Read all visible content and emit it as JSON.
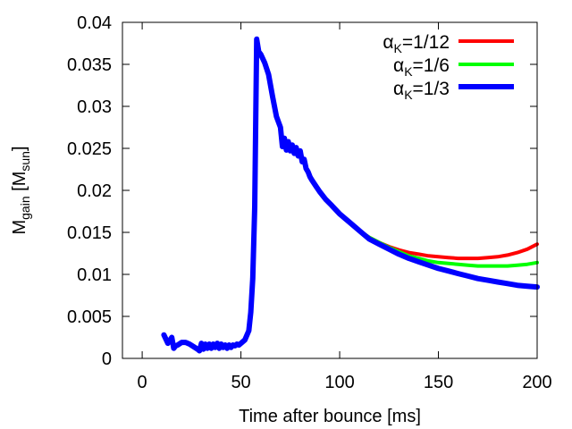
{
  "chart_data": {
    "type": "line",
    "title": "",
    "xlabel": "Time after bounce [ms]",
    "ylabel": {
      "main": "M",
      "main_sub": "gain",
      "unit_open": " [M",
      "unit_sub": "sun",
      "unit_close": "]"
    },
    "xlim": [
      -10,
      200
    ],
    "ylim": [
      0,
      0.04
    ],
    "xticks": [
      0,
      50,
      100,
      150,
      200
    ],
    "yticks": [
      0,
      0.005,
      0.01,
      0.015,
      0.02,
      0.025,
      0.03,
      0.035,
      0.04
    ],
    "xtick_labels": [
      "0",
      "50",
      "100",
      "150",
      "200"
    ],
    "ytick_labels": [
      "0",
      "0.005",
      "0.01",
      "0.015",
      "0.02",
      "0.025",
      "0.03",
      "0.035",
      "0.04"
    ],
    "legend_position": "top-right",
    "common": {
      "x": [
        11,
        13,
        15,
        16,
        17,
        18,
        20,
        22,
        24,
        26,
        28,
        29,
        30,
        31,
        32,
        33,
        34,
        35,
        36,
        37,
        38,
        39,
        40,
        41,
        42,
        43,
        44,
        45,
        46,
        47,
        48,
        49,
        50,
        52,
        54,
        55,
        56,
        57,
        58,
        59,
        60,
        62,
        64,
        66,
        68,
        70,
        71,
        72,
        73,
        74,
        75,
        76,
        77,
        78,
        79,
        80,
        81,
        82,
        83,
        84,
        85,
        86,
        88,
        90,
        93,
        96,
        100,
        105,
        110
      ],
      "y": [
        0.0028,
        0.0018,
        0.0025,
        0.0012,
        0.0015,
        0.0016,
        0.0019,
        0.0019,
        0.0017,
        0.0014,
        0.0011,
        0.0009,
        0.0018,
        0.0011,
        0.0017,
        0.0012,
        0.0017,
        0.0012,
        0.0017,
        0.0013,
        0.0018,
        0.0012,
        0.0017,
        0.0013,
        0.0016,
        0.0012,
        0.0016,
        0.0013,
        0.0016,
        0.0015,
        0.0017,
        0.0016,
        0.0018,
        0.0022,
        0.0033,
        0.0055,
        0.0095,
        0.018,
        0.038,
        0.0365,
        0.0362,
        0.0352,
        0.0338,
        0.0312,
        0.0288,
        0.0275,
        0.0252,
        0.0262,
        0.0248,
        0.0258,
        0.0247,
        0.0254,
        0.0244,
        0.0251,
        0.0241,
        0.0247,
        0.0234,
        0.0237,
        0.0226,
        0.0222,
        0.0216,
        0.0212,
        0.0205,
        0.0198,
        0.0189,
        0.0182,
        0.0172,
        0.0162,
        0.0152
      ]
    },
    "series": [
      {
        "name": "α_K=1/12",
        "label_main": "α",
        "label_sub": "K",
        "label_rest": "=1/12",
        "color": "#ff0000",
        "x": [
          115,
          120,
          125,
          130,
          135,
          140,
          145,
          150,
          155,
          160,
          165,
          170,
          175,
          180,
          185,
          190,
          195,
          200
        ],
        "y": [
          0.0144,
          0.0138,
          0.0133,
          0.0129,
          0.0126,
          0.0124,
          0.0122,
          0.0121,
          0.012,
          0.0119,
          0.0119,
          0.0119,
          0.012,
          0.0121,
          0.0123,
          0.0126,
          0.013,
          0.0136
        ]
      },
      {
        "name": "α_K=1/6",
        "label_main": "α",
        "label_sub": "K",
        "label_rest": "=1/6",
        "color": "#00ff00",
        "x": [
          115,
          120,
          125,
          130,
          135,
          140,
          145,
          150,
          155,
          160,
          165,
          170,
          175,
          180,
          185,
          190,
          195,
          200
        ],
        "y": [
          0.0144,
          0.0138,
          0.0132,
          0.0127,
          0.0122,
          0.0119,
          0.0116,
          0.0114,
          0.0113,
          0.0112,
          0.0111,
          0.011,
          0.011,
          0.011,
          0.011,
          0.0111,
          0.0112,
          0.0114
        ]
      },
      {
        "name": "α_K=1/3",
        "label_main": "α",
        "label_sub": "K",
        "label_rest": "=1/3",
        "color": "#0000ff",
        "x": [
          115,
          120,
          125,
          130,
          135,
          140,
          145,
          150,
          155,
          160,
          165,
          170,
          175,
          180,
          185,
          190,
          195,
          200
        ],
        "y": [
          0.0142,
          0.0136,
          0.013,
          0.0124,
          0.0119,
          0.0115,
          0.0111,
          0.0107,
          0.0104,
          0.0101,
          0.0098,
          0.0095,
          0.0093,
          0.0091,
          0.0089,
          0.0087,
          0.0086,
          0.0085
        ]
      }
    ]
  }
}
